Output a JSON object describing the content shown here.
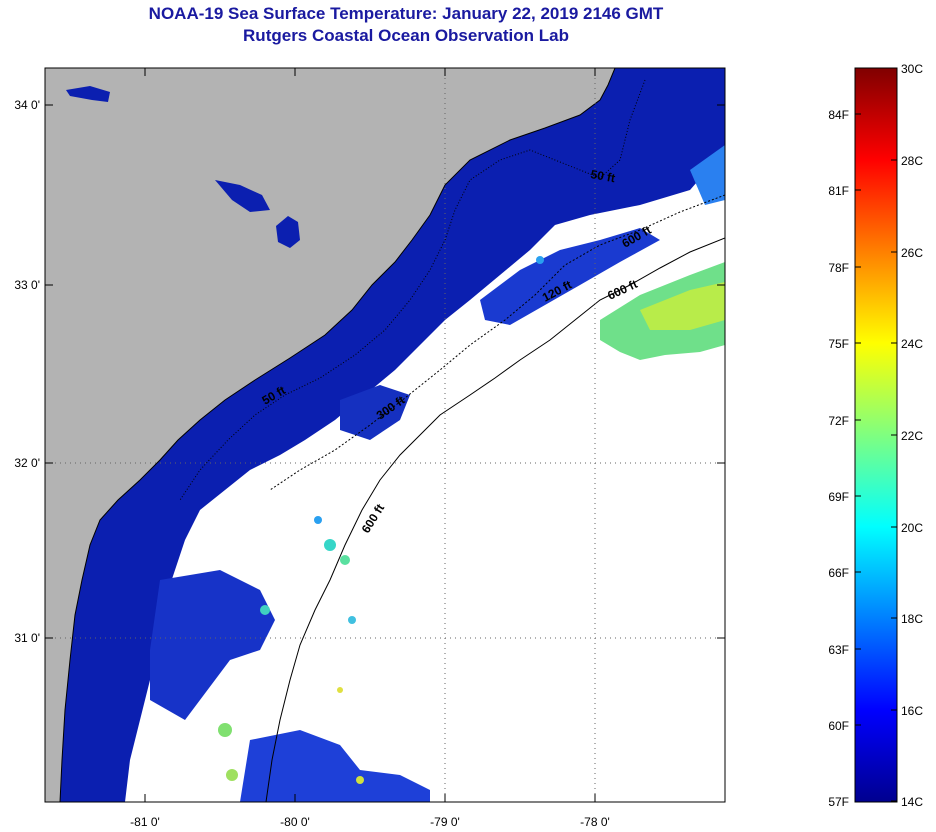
{
  "title": {
    "line1": "NOAA-19 Sea Surface Temperature:  January 22, 2019 2146 GMT",
    "line2": "Rutgers Coastal Ocean Observation Lab"
  },
  "map": {
    "lon_ticks": [
      "-81 0'",
      "-80 0'",
      "-79 0'",
      "-78 0'"
    ],
    "lat_ticks": [
      "34 0'",
      "33 0'",
      "32 0'",
      "31 0'"
    ],
    "contour_labels": [
      "50 ft",
      "120 ft",
      "600 ft",
      "600 ft",
      "300 ft",
      "50 ft",
      "600 ft"
    ]
  },
  "colorbar": {
    "celsius": [
      "30C",
      "28C",
      "26C",
      "24C",
      "22C",
      "20C",
      "18C",
      "16C",
      "14C"
    ],
    "fahrenheit": [
      "84F",
      "81F",
      "78F",
      "75F",
      "72F",
      "69F",
      "66F",
      "63F",
      "60F",
      "57F"
    ]
  },
  "colors": {
    "land": "#b3b3b3",
    "title": "#1a1aa0",
    "sst_cold": "#0b1fb0"
  }
}
